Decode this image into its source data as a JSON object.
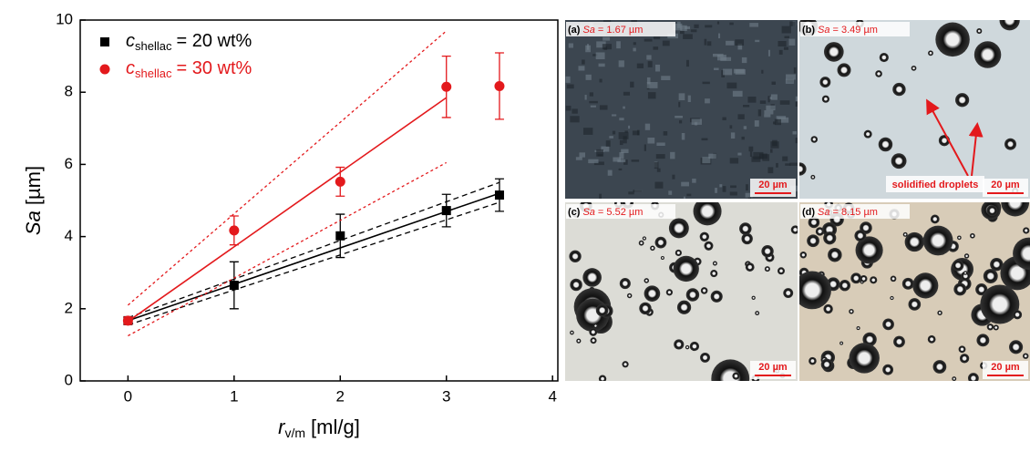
{
  "chart_data": {
    "type": "scatter",
    "y_label": {
      "symbol": "Sa",
      "unit": "[µm]"
    },
    "x_label": {
      "symbol": "r",
      "subscript": "v/m",
      "unit": "[ml/g]"
    },
    "xlim": [
      -0.45,
      4.05
    ],
    "xticks": [
      0,
      1,
      2,
      3,
      4
    ],
    "ylim": [
      0,
      10
    ],
    "yticks": [
      0,
      2,
      4,
      6,
      8,
      10
    ],
    "series": [
      {
        "name": {
          "symbol": "c",
          "subscript": "shellac",
          "text": "= 20 wt%"
        },
        "color": "#000000",
        "marker": "square",
        "x": [
          0,
          1,
          2,
          3,
          3.5
        ],
        "values": [
          1.67,
          2.65,
          4.02,
          4.72,
          5.15
        ],
        "errors": [
          0.1,
          0.65,
          0.6,
          0.45,
          0.45
        ],
        "fit": {
          "x": [
            0,
            3.5
          ],
          "values": [
            1.67,
            5.2
          ],
          "lower": [
            1.55,
            4.95
          ],
          "upper": [
            1.75,
            5.5
          ],
          "dash": "6 4"
        }
      },
      {
        "name": {
          "symbol": "c",
          "subscript": "shellac",
          "text": "= 30 wt%"
        },
        "color": "#e3191c",
        "marker": "circle",
        "x": [
          0,
          1,
          2,
          3,
          3.5
        ],
        "values": [
          1.67,
          4.17,
          5.52,
          8.15,
          8.17
        ],
        "errors": [
          0.1,
          0.4,
          0.4,
          0.85,
          0.92
        ],
        "fit": {
          "x": [
            0,
            3
          ],
          "values": [
            1.65,
            7.85
          ],
          "lower": [
            1.25,
            6.05
          ],
          "upper": [
            2.1,
            9.7
          ],
          "dash": "3 3"
        }
      }
    ]
  },
  "panels": [
    {
      "label": "(a)",
      "sa_symbol": "Sa",
      "sa_value": "= 1.67 µm",
      "scale_bar": "20 µm"
    },
    {
      "label": "(b)",
      "sa_symbol": "Sa",
      "sa_value": "= 3.49 µm",
      "scale_bar": "20 µm",
      "annotation": "solidified droplets"
    },
    {
      "label": "(c)",
      "sa_symbol": "Sa",
      "sa_value": "= 5.52 µm",
      "scale_bar": "20 µm"
    },
    {
      "label": "(d)",
      "sa_symbol": "Sa",
      "sa_value": "= 8.15 µm",
      "scale_bar": "20 µm"
    }
  ]
}
